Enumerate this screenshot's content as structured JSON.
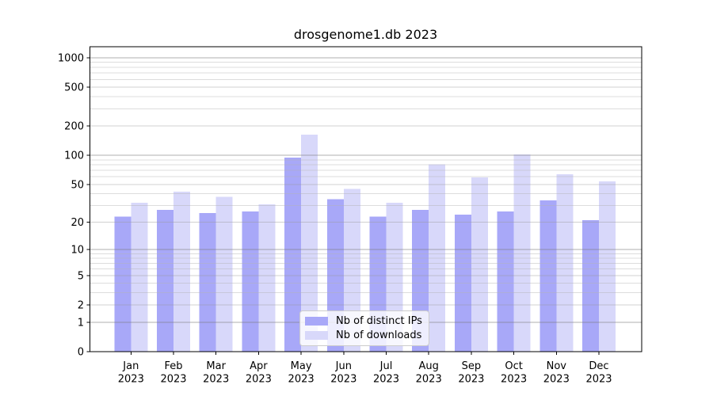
{
  "chart_data": {
    "type": "bar",
    "title": "drosgenome1.db 2023",
    "categories": [
      "Jan",
      "Feb",
      "Mar",
      "Apr",
      "May",
      "Jun",
      "Jul",
      "Aug",
      "Sep",
      "Oct",
      "Nov",
      "Dec"
    ],
    "year_label": "2023",
    "series": [
      {
        "name": "Nb of distinct IPs",
        "color": "#a8a8f8",
        "values": [
          23,
          27,
          25,
          26,
          95,
          35,
          23,
          27,
          24,
          26,
          34,
          21
        ]
      },
      {
        "name": "Nb of downloads",
        "color": "#d8d8fa",
        "values": [
          32,
          42,
          37,
          31,
          163,
          45,
          32,
          81,
          59,
          102,
          64,
          54
        ]
      }
    ],
    "yticks": [
      0,
      1,
      2,
      5,
      10,
      20,
      50,
      100,
      200,
      500,
      1000
    ],
    "yscale": "log1p",
    "ylim": [
      0,
      1300
    ],
    "grid": true,
    "legend_position": "lower-center",
    "background": "#ffffff",
    "text_color": "#000000",
    "gridline_major_values": [
      1,
      10,
      100,
      1000
    ],
    "gridline_sub_values": [
      2,
      5,
      20,
      50,
      200,
      500
    ]
  }
}
